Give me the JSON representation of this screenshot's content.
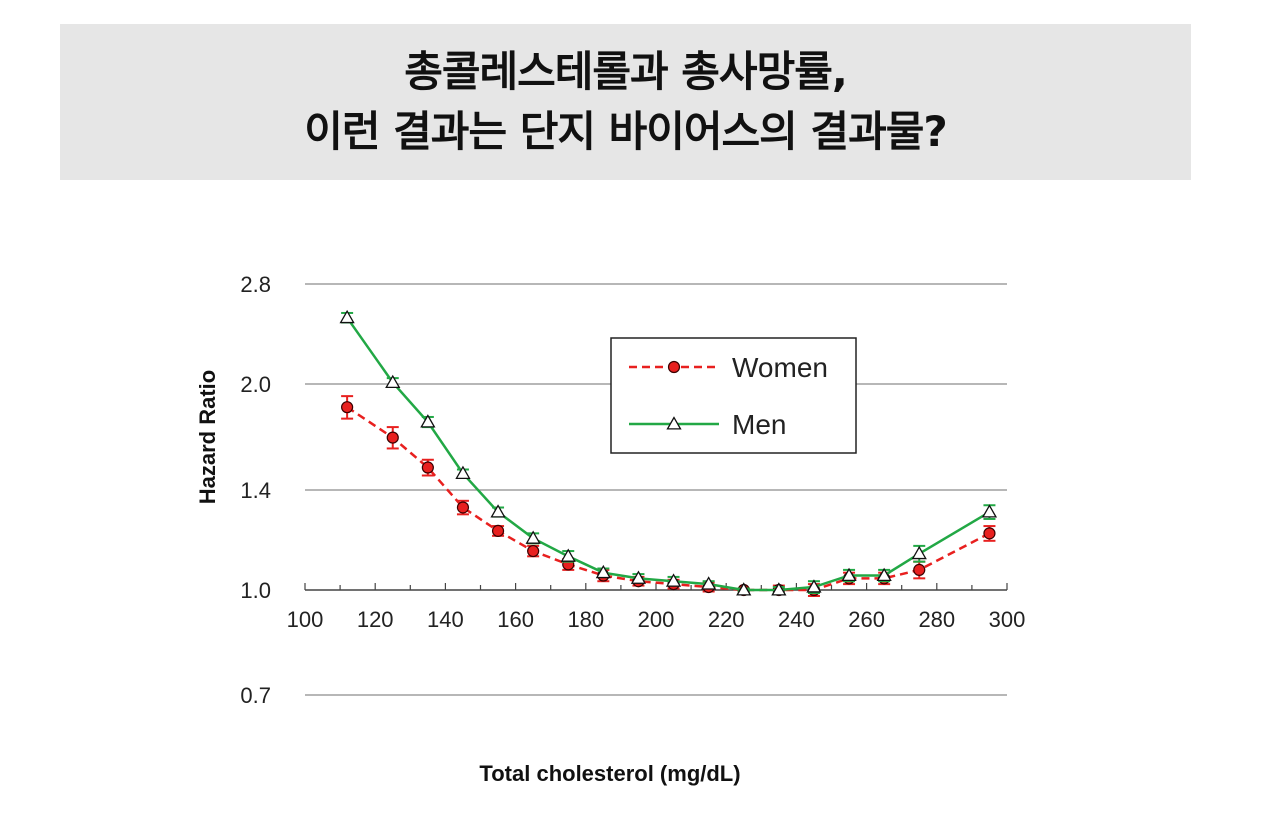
{
  "header": {
    "title_line1": "총콜레스테롤과 총사망률,",
    "title_line2": "이런 결과는 단지 바이어스의 결과물?"
  },
  "chart_data": {
    "type": "line",
    "title": "",
    "xlabel": "Total cholesterol (mg/dL)",
    "ylabel": "Hazard Ratio",
    "x_ticks": [
      "100",
      "120",
      "140",
      "160",
      "180",
      "200",
      "220",
      "240",
      "260",
      "280",
      "300"
    ],
    "y_ticks": [
      "0.7",
      "1.0",
      "1.4",
      "2.0",
      "2.8"
    ],
    "xlim": [
      100,
      300
    ],
    "y_scale": "log",
    "ylim": [
      0.7,
      2.8
    ],
    "grid": "horizontal",
    "legend_position": "top-right",
    "x": [
      112,
      125,
      135,
      145,
      155,
      165,
      175,
      185,
      195,
      205,
      215,
      225,
      235,
      245,
      255,
      265,
      275,
      295
    ],
    "series": [
      {
        "name": "Women",
        "color": "#e8201f",
        "line_style": "dashed",
        "marker": "circle",
        "values": [
          1.85,
          1.67,
          1.51,
          1.32,
          1.22,
          1.14,
          1.09,
          1.05,
          1.03,
          1.02,
          1.01,
          1.0,
          1.0,
          1.0,
          1.04,
          1.04,
          1.07,
          1.21
        ],
        "errors": [
          0.07,
          0.06,
          0.04,
          0.03,
          0.02,
          0.02,
          0.02,
          0.02,
          0.015,
          0.015,
          0.015,
          0.005,
          0.015,
          0.02,
          0.02,
          0.02,
          0.03,
          0.03
        ]
      },
      {
        "name": "Men",
        "color": "#22a845",
        "line_style": "solid",
        "marker": "triangle",
        "values": [
          2.5,
          2.01,
          1.76,
          1.48,
          1.3,
          1.19,
          1.12,
          1.06,
          1.04,
          1.03,
          1.02,
          1.0,
          1.0,
          1.01,
          1.05,
          1.05,
          1.13,
          1.3
        ],
        "errors": [
          0.04,
          0.03,
          0.03,
          0.02,
          0.02,
          0.02,
          0.02,
          0.015,
          0.015,
          0.015,
          0.01,
          0.005,
          0.01,
          0.02,
          0.02,
          0.02,
          0.03,
          0.03
        ]
      }
    ]
  }
}
